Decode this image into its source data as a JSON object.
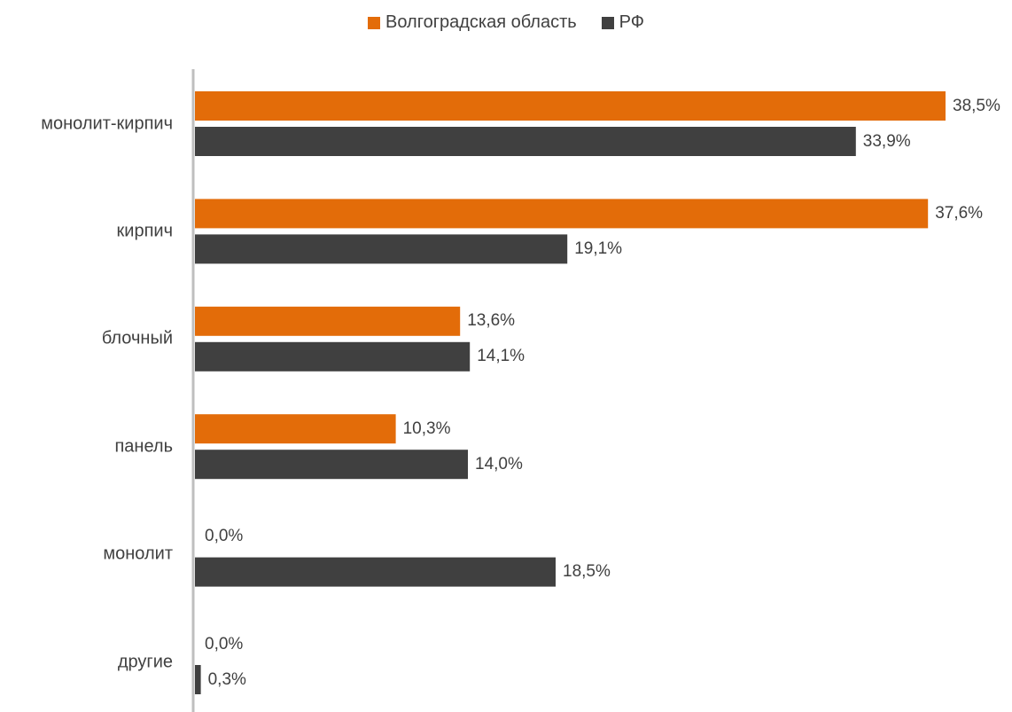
{
  "chart_data": {
    "type": "bar",
    "orientation": "horizontal",
    "categories": [
      "монолит-кирпич",
      "кирпич",
      "блочный",
      "панель",
      "монолит",
      "другие"
    ],
    "series": [
      {
        "name": "Волгоградская область",
        "color": "#E36C09",
        "values": [
          38.5,
          37.6,
          13.6,
          10.3,
          0.0,
          0.0
        ],
        "labels": [
          "38,5%",
          "37,6%",
          "13,6%",
          "10,3%",
          "0,0%",
          "0,0%"
        ]
      },
      {
        "name": "РФ",
        "color": "#404040",
        "values": [
          33.9,
          19.1,
          14.1,
          14.0,
          18.5,
          0.3
        ],
        "labels": [
          "33,9%",
          "19,1%",
          "14,1%",
          "14,0%",
          "18,5%",
          "0,3%"
        ]
      }
    ],
    "xlim": [
      0,
      38.5
    ],
    "legend_position": "top",
    "grid": false,
    "axis_color": "#BFBFBF"
  }
}
